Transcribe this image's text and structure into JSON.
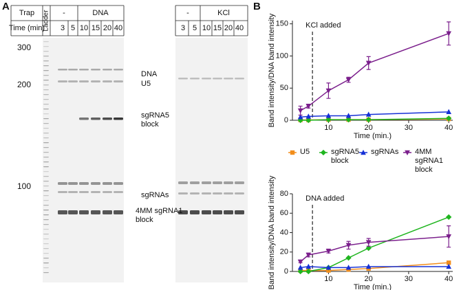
{
  "panel_a": {
    "label": "A",
    "gel_1": {
      "trap_label": "Trap",
      "time_label": "Time (min)",
      "ladder_label": "Ladder",
      "groups": [
        "-",
        "DNA"
      ],
      "times": [
        "3",
        "5",
        "10",
        "15",
        "20",
        "40"
      ]
    },
    "gel_2": {
      "groups": [
        "-",
        "KCl"
      ],
      "times": [
        "3",
        "5",
        "10",
        "15",
        "20",
        "40"
      ]
    },
    "size_markers": [
      "300",
      "200",
      "100"
    ],
    "band_labels": [
      "DNA",
      "U5",
      "sgRNA5 block",
      "sgRNAs",
      "4MM sgRNA1 block"
    ]
  },
  "panel_b": {
    "label": "B"
  },
  "chart_data": [
    {
      "type": "line",
      "x_label": "Time (min.)",
      "y_label": "Band intensity/DNA band intensity",
      "annotation": {
        "text": "KCl added",
        "x": 6
      },
      "x": [
        3,
        5,
        10,
        15,
        20,
        40
      ],
      "xlim": [
        1,
        41
      ],
      "xticks": [
        10,
        20,
        30,
        40
      ],
      "ylim": [
        0,
        155
      ],
      "yticks": [
        0,
        50,
        100,
        150
      ],
      "series": [
        {
          "name": "U5",
          "color": "#f28e1c",
          "marker": "square",
          "values": [
            0.5,
            0.5,
            1,
            1,
            1,
            2
          ]
        },
        {
          "name": "sgRNA5 block",
          "color": "#1fb51f",
          "marker": "diamond",
          "values": [
            0,
            0,
            1,
            1,
            1,
            3
          ]
        },
        {
          "name": "sgRNAs",
          "color": "#1530d6",
          "marker": "triangle-up",
          "values": [
            5,
            6,
            7,
            7,
            9,
            13
          ]
        },
        {
          "name": "4MM sgRNA1 block",
          "color": "#7b1f8c",
          "marker": "triangle-down",
          "values": [
            15,
            22,
            46,
            63,
            89,
            135
          ],
          "errors": [
            7,
            3,
            12,
            4,
            10,
            18
          ]
        }
      ]
    },
    {
      "type": "line",
      "x_label": "Time (min.)",
      "y_label": "Band intensity/DNA band intensity",
      "annotation": {
        "text": "DNA added",
        "x": 6
      },
      "x": [
        3,
        5,
        10,
        15,
        20,
        40
      ],
      "xlim": [
        1,
        41
      ],
      "xticks": [
        10,
        20,
        30,
        40
      ],
      "ylim": [
        0,
        80
      ],
      "yticks": [
        0,
        20,
        40,
        60,
        80
      ],
      "series": [
        {
          "color": "#f28e1c",
          "marker": "square",
          "values": [
            1,
            1,
            1,
            2,
            3,
            9
          ]
        },
        {
          "color": "#1fb51f",
          "marker": "diamond",
          "values": [
            0,
            0,
            4,
            14,
            24,
            56
          ]
        },
        {
          "color": "#1530d6",
          "marker": "triangle-up",
          "values": [
            4,
            5,
            4,
            4,
            5,
            5
          ]
        },
        {
          "color": "#7b1f8c",
          "marker": "triangle-down",
          "values": [
            10,
            17,
            21,
            27,
            30,
            36
          ],
          "errors": [
            1,
            2,
            2,
            4,
            4,
            11
          ]
        }
      ]
    }
  ]
}
